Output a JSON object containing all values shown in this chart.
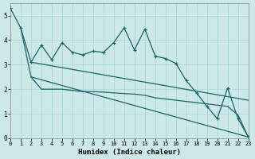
{
  "xlabel": "Humidex (Indice chaleur)",
  "bg_color": "#cce8e8",
  "grid_color": "#aad4d4",
  "line_color": "#1a6464",
  "xlim": [
    0,
    23
  ],
  "ylim": [
    0,
    5.5
  ],
  "yticks": [
    0,
    1,
    2,
    3,
    4,
    5
  ],
  "xticks": [
    0,
    1,
    2,
    3,
    4,
    5,
    6,
    7,
    8,
    9,
    10,
    11,
    12,
    13,
    14,
    15,
    16,
    17,
    18,
    19,
    20,
    21,
    22,
    23
  ],
  "main_x": [
    0,
    1,
    2,
    3,
    4,
    5,
    6,
    7,
    8,
    9,
    10,
    11,
    12,
    13,
    14,
    15,
    16,
    17,
    18,
    19,
    20,
    21,
    22,
    23
  ],
  "main_y": [
    5.3,
    4.5,
    3.1,
    3.8,
    3.2,
    3.9,
    3.5,
    3.4,
    3.55,
    3.5,
    3.9,
    4.5,
    3.6,
    4.45,
    3.35,
    3.25,
    3.05,
    2.35,
    1.85,
    1.3,
    0.8,
    2.05,
    0.8,
    0.05
  ],
  "lower_x": [
    1,
    2,
    3,
    4,
    5,
    6,
    7,
    8,
    9,
    10,
    11,
    12,
    13,
    14,
    15,
    16,
    17,
    18,
    19,
    20,
    21,
    22,
    23
  ],
  "lower_y": [
    4.5,
    2.5,
    2.0,
    2.0,
    2.0,
    1.95,
    1.9,
    1.9,
    1.88,
    1.85,
    1.82,
    1.8,
    1.75,
    1.65,
    1.6,
    1.55,
    1.5,
    1.45,
    1.4,
    1.35,
    1.3,
    0.95,
    0.05
  ],
  "trend1_x": [
    2,
    23
  ],
  "trend1_y": [
    3.1,
    1.55
  ],
  "trend2_x": [
    2,
    23
  ],
  "trend2_y": [
    2.5,
    0.05
  ],
  "xlabel_fontsize": 6.5,
  "tick_fontsize": 5.5
}
